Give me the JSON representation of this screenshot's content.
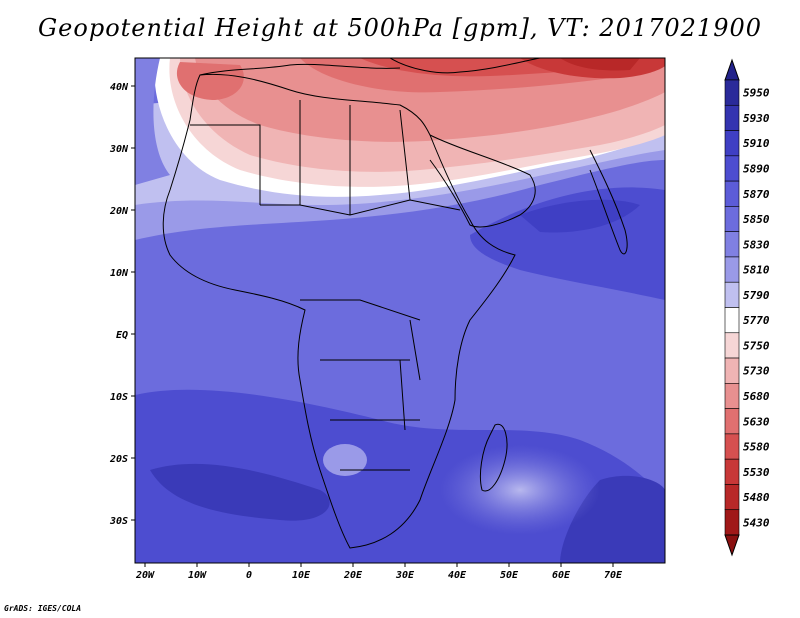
{
  "title": "Geopotential Height at 500hPa [gpm], VT: 2017021900",
  "footer": "GrADS: IGES/COLA",
  "map": {
    "lon_labels": [
      "20W",
      "10W",
      "0",
      "10E",
      "20E",
      "30E",
      "40E",
      "50E",
      "60E",
      "70E"
    ],
    "lat_labels": [
      "40N",
      "30N",
      "20N",
      "10N",
      "EQ",
      "10S",
      "20S",
      "30S"
    ]
  },
  "colorbar": {
    "levels": [
      "5950",
      "5930",
      "5910",
      "5890",
      "5870",
      "5850",
      "5830",
      "5810",
      "5790",
      "5770",
      "5750",
      "5730",
      "5680",
      "5630",
      "5580",
      "5530",
      "5480",
      "5430"
    ],
    "colors": [
      "#2a2a9a",
      "#3434b0",
      "#3f3fc4",
      "#4d4dd0",
      "#5c5cd8",
      "#6c6cdd",
      "#8080e2",
      "#9a9ae8",
      "#c0c0f0",
      "#ffffff",
      "#f6d6d6",
      "#f0b4b4",
      "#e89090",
      "#e07070",
      "#d65050",
      "#c83838",
      "#b82828",
      "#a01818"
    ],
    "top_arrow_color": "#22228a",
    "bottom_arrow_color": "#8a1010"
  }
}
